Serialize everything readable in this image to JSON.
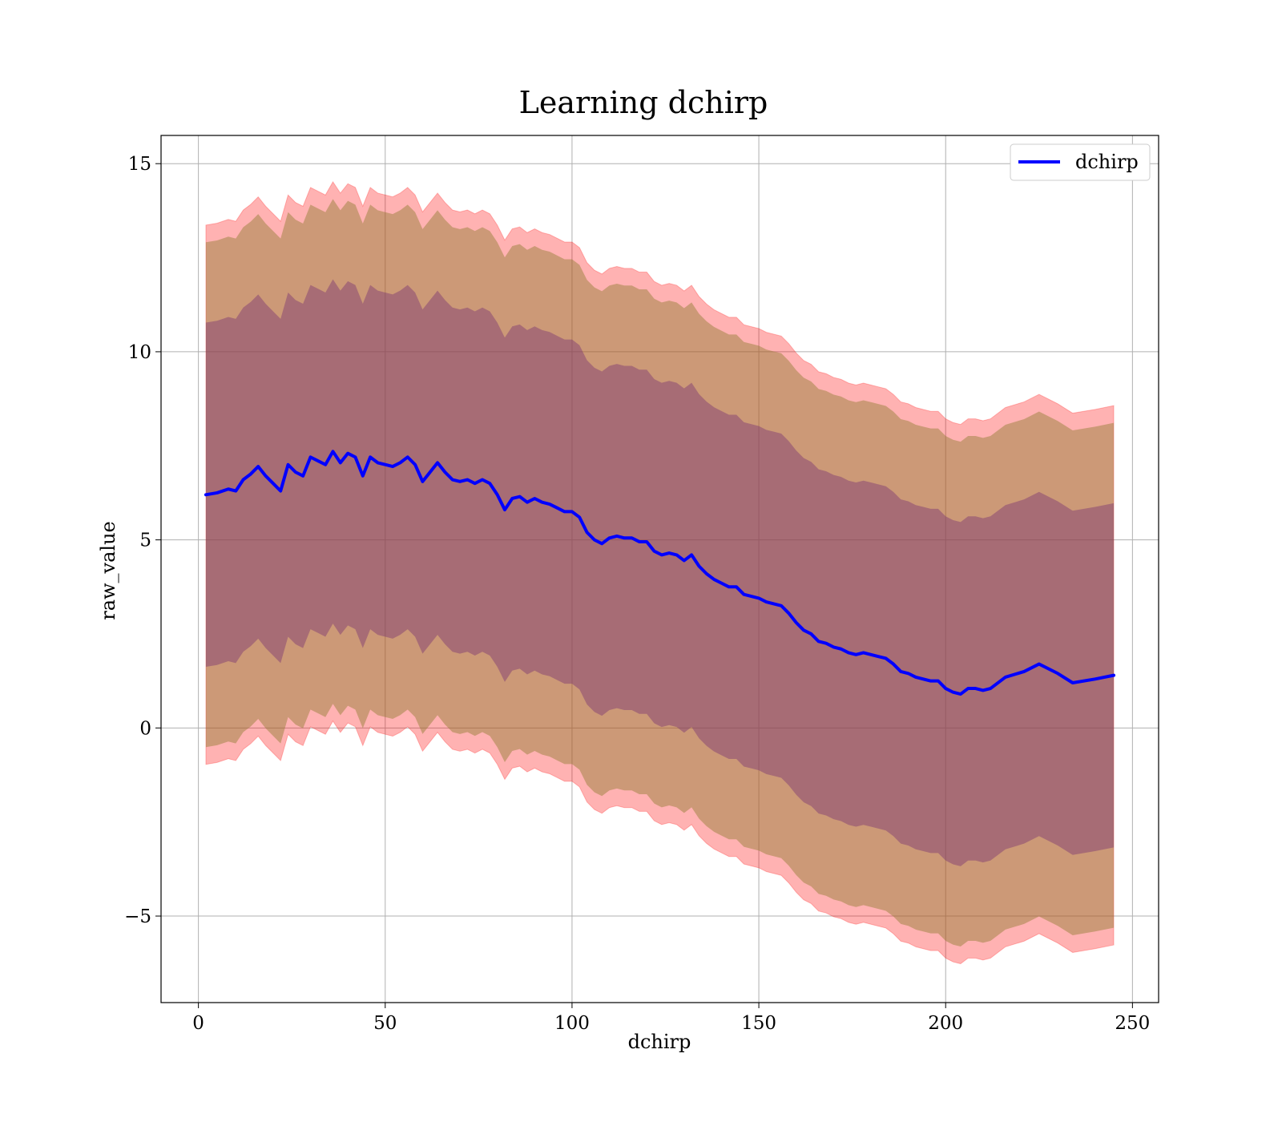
{
  "chart_data": {
    "type": "area",
    "title": "Learning dchirp",
    "xlabel": "dchirp",
    "ylabel": "raw_value",
    "xlim": [
      -10,
      257
    ],
    "ylim": [
      -7.3,
      15.75
    ],
    "xticks": [
      0,
      50,
      100,
      150,
      200,
      250
    ],
    "xtick_labels": [
      "0",
      "50",
      "100",
      "150",
      "200",
      "250"
    ],
    "yticks": [
      -5,
      0,
      5,
      10,
      15
    ],
    "ytick_labels": [
      "−5",
      "0",
      "5",
      "10",
      "15"
    ],
    "grid": true,
    "legend": {
      "position": "top-right",
      "entries": [
        "dchirp"
      ]
    },
    "colors": {
      "mean_line": "#0000ff",
      "band_3sigma": "#ff0000",
      "band_3sigma_opacity": 0.3,
      "band_2sigma": "#8f7a2e",
      "band_2sigma_opacity": 0.45,
      "band_1sigma": "#7a3573",
      "band_1sigma_opacity": 0.45
    },
    "x": [
      2,
      5,
      8,
      10,
      12,
      14,
      16,
      18,
      20,
      22,
      24,
      26,
      28,
      30,
      32,
      34,
      36,
      38,
      40,
      42,
      44,
      46,
      48,
      50,
      52,
      54,
      56,
      58,
      60,
      62,
      64,
      66,
      68,
      70,
      72,
      74,
      76,
      78,
      80,
      82,
      84,
      86,
      88,
      90,
      92,
      94,
      96,
      98,
      100,
      102,
      104,
      106,
      108,
      110,
      112,
      114,
      116,
      118,
      120,
      122,
      124,
      126,
      128,
      130,
      132,
      134,
      136,
      138,
      140,
      142,
      144,
      146,
      148,
      150,
      152,
      154,
      156,
      158,
      160,
      162,
      164,
      166,
      168,
      170,
      172,
      174,
      176,
      178,
      180,
      182,
      184,
      186,
      188,
      190,
      192,
      194,
      196,
      198,
      200,
      202,
      204,
      206,
      208,
      210,
      212,
      216,
      221,
      225,
      230,
      234,
      240,
      245
    ],
    "series": [
      {
        "name": "dchirp",
        "values": [
          6.2,
          6.25,
          6.35,
          6.3,
          6.6,
          6.75,
          6.95,
          6.7,
          6.5,
          6.3,
          7.0,
          6.8,
          6.7,
          7.2,
          7.1,
          7.0,
          7.35,
          7.05,
          7.3,
          7.2,
          6.7,
          7.2,
          7.05,
          7.0,
          6.95,
          7.05,
          7.2,
          7.0,
          6.55,
          6.8,
          7.05,
          6.8,
          6.6,
          6.55,
          6.6,
          6.5,
          6.6,
          6.5,
          6.2,
          5.8,
          6.1,
          6.15,
          6.0,
          6.1,
          6.0,
          5.95,
          5.85,
          5.75,
          5.75,
          5.6,
          5.2,
          5.0,
          4.9,
          5.05,
          5.1,
          5.05,
          5.05,
          4.95,
          4.95,
          4.7,
          4.6,
          4.65,
          4.6,
          4.45,
          4.6,
          4.3,
          4.1,
          3.95,
          3.85,
          3.75,
          3.75,
          3.55,
          3.5,
          3.45,
          3.35,
          3.3,
          3.25,
          3.05,
          2.8,
          2.6,
          2.5,
          2.3,
          2.25,
          2.15,
          2.1,
          2.0,
          1.95,
          2.0,
          1.95,
          1.9,
          1.85,
          1.7,
          1.5,
          1.45,
          1.35,
          1.3,
          1.25,
          1.25,
          1.05,
          0.95,
          0.9,
          1.05,
          1.05,
          1.0,
          1.05,
          1.35,
          1.5,
          1.7,
          1.45,
          1.2,
          1.3,
          1.4
        ]
      }
    ],
    "sigma": 3.05
  }
}
